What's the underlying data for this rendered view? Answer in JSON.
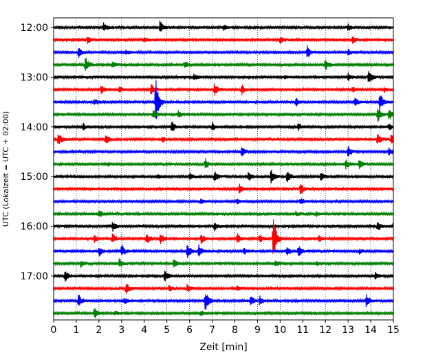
{
  "chart_data": {
    "type": "line",
    "title": "",
    "xlabel": "Zeit  [min]",
    "ylabel": "UTC (Lokalzeit = UTC + 02:00)",
    "xlim": [
      0,
      15
    ],
    "x_ticks": [
      "0",
      "1",
      "2",
      "3",
      "4",
      "5",
      "6",
      "7",
      "8",
      "9",
      "10",
      "11",
      "12",
      "13",
      "14",
      "15"
    ],
    "y_ticks": [
      {
        "label": "12:00",
        "row": 0
      },
      {
        "label": "13:00",
        "row": 4
      },
      {
        "label": "14:00",
        "row": 8
      },
      {
        "label": "15:00",
        "row": 12
      },
      {
        "label": "16:00",
        "row": 16
      },
      {
        "label": "17:00",
        "row": 20
      }
    ],
    "grid": {
      "vertical": true,
      "horizontal": false,
      "style": "dotted"
    },
    "row_interval_minutes": 15,
    "row_colors": [
      "#000000",
      "#ff0000",
      "#0000ff",
      "#008000"
    ],
    "rows": [
      {
        "start": "12:00",
        "events": [
          {
            "t": 2.2,
            "a": 0.5
          },
          {
            "t": 4.7,
            "a": 0.8
          },
          {
            "t": 7.5,
            "a": 0.4
          },
          {
            "t": 13.0,
            "a": 0.4
          }
        ]
      },
      {
        "start": "12:15",
        "events": [
          {
            "t": 1.5,
            "a": 0.5
          },
          {
            "t": 4.0,
            "a": 0.3
          },
          {
            "t": 10.0,
            "a": 0.4
          },
          {
            "t": 13.2,
            "a": 0.5
          }
        ]
      },
      {
        "start": "12:30",
        "events": [
          {
            "t": 1.1,
            "a": 0.6
          },
          {
            "t": 3.2,
            "a": 0.3
          },
          {
            "t": 11.2,
            "a": 0.8
          },
          {
            "t": 13.0,
            "a": 0.4
          }
        ]
      },
      {
        "start": "12:45",
        "events": [
          {
            "t": 1.4,
            "a": 1.0
          },
          {
            "t": 2.6,
            "a": 0.4
          },
          {
            "t": 5.8,
            "a": 0.4
          },
          {
            "t": 12.0,
            "a": 0.7
          }
        ]
      },
      {
        "start": "13:00",
        "events": [
          {
            "t": 6.2,
            "a": 0.4
          },
          {
            "t": 10.2,
            "a": 0.3
          },
          {
            "t": 13.0,
            "a": 0.5
          },
          {
            "t": 13.9,
            "a": 1.0
          }
        ]
      },
      {
        "start": "13:15",
        "events": [
          {
            "t": 2.1,
            "a": 0.5
          },
          {
            "t": 2.9,
            "a": 0.4
          },
          {
            "t": 4.3,
            "a": 0.7
          },
          {
            "t": 7.1,
            "a": 0.8
          },
          {
            "t": 8.3,
            "a": 0.6
          },
          {
            "t": 13.2,
            "a": 0.3
          },
          {
            "t": 14.6,
            "a": 0.3
          }
        ]
      },
      {
        "start": "13:30",
        "events": [
          {
            "t": 1.8,
            "a": 0.4
          },
          {
            "t": 4.5,
            "a": 3.0
          },
          {
            "t": 10.7,
            "a": 0.5
          },
          {
            "t": 13.3,
            "a": 0.5
          },
          {
            "t": 14.4,
            "a": 1.2
          }
        ]
      },
      {
        "start": "13:45",
        "events": [
          {
            "t": 4.4,
            "a": 0.6
          },
          {
            "t": 5.5,
            "a": 0.4
          },
          {
            "t": 14.3,
            "a": 1.0
          },
          {
            "t": 14.8,
            "a": 0.8
          }
        ]
      },
      {
        "start": "14:00",
        "events": [
          {
            "t": 1.3,
            "a": 0.4
          },
          {
            "t": 5.2,
            "a": 0.8
          },
          {
            "t": 7.0,
            "a": 0.5
          },
          {
            "t": 10.8,
            "a": 0.4
          },
          {
            "t": 14.8,
            "a": 0.5
          }
        ]
      },
      {
        "start": "14:15",
        "events": [
          {
            "t": 0.2,
            "a": 1.0
          },
          {
            "t": 2.3,
            "a": 0.7
          },
          {
            "t": 4.8,
            "a": 0.3
          },
          {
            "t": 14.3,
            "a": 0.7
          },
          {
            "t": 14.9,
            "a": 0.6
          }
        ]
      },
      {
        "start": "14:30",
        "events": [
          {
            "t": 8.3,
            "a": 0.6
          },
          {
            "t": 13.0,
            "a": 0.7
          },
          {
            "t": 14.8,
            "a": 0.5
          }
        ]
      },
      {
        "start": "14:45",
        "events": [
          {
            "t": 2.4,
            "a": 0.3
          },
          {
            "t": 6.7,
            "a": 0.7
          },
          {
            "t": 12.9,
            "a": 0.6
          },
          {
            "t": 13.5,
            "a": 0.6
          }
        ]
      },
      {
        "start": "15:00",
        "events": [
          {
            "t": 4.6,
            "a": 0.3
          },
          {
            "t": 6.0,
            "a": 0.4
          },
          {
            "t": 7.1,
            "a": 0.7
          },
          {
            "t": 8.6,
            "a": 0.6
          },
          {
            "t": 9.6,
            "a": 0.9
          },
          {
            "t": 10.3,
            "a": 0.8
          },
          {
            "t": 11.8,
            "a": 0.5
          }
        ]
      },
      {
        "start": "15:15",
        "events": [
          {
            "t": 8.2,
            "a": 0.6
          },
          {
            "t": 10.9,
            "a": 0.7
          }
        ]
      },
      {
        "start": "15:30",
        "events": [
          {
            "t": 6.5,
            "a": 0.3
          },
          {
            "t": 8.1,
            "a": 0.3
          },
          {
            "t": 10.9,
            "a": 0.4
          }
        ]
      },
      {
        "start": "15:45",
        "events": [
          {
            "t": 2.0,
            "a": 0.5
          },
          {
            "t": 10.7,
            "a": 0.3
          },
          {
            "t": 11.6,
            "a": 0.3
          }
        ]
      },
      {
        "start": "16:00",
        "events": [
          {
            "t": 2.6,
            "a": 0.6
          },
          {
            "t": 7.1,
            "a": 0.6
          },
          {
            "t": 14.3,
            "a": 0.6
          },
          {
            "t": 15.0,
            "a": 0.4
          }
        ]
      },
      {
        "start": "16:15",
        "events": [
          {
            "t": 1.8,
            "a": 0.4
          },
          {
            "t": 2.6,
            "a": 0.6
          },
          {
            "t": 4.1,
            "a": 0.7
          },
          {
            "t": 4.7,
            "a": 0.7
          },
          {
            "t": 6.5,
            "a": 0.6
          },
          {
            "t": 8.1,
            "a": 0.7
          },
          {
            "t": 9.1,
            "a": 0.6
          },
          {
            "t": 9.7,
            "a": 2.8
          },
          {
            "t": 11.7,
            "a": 0.4
          }
        ]
      },
      {
        "start": "16:30",
        "events": [
          {
            "t": 2.0,
            "a": 0.6
          },
          {
            "t": 3.0,
            "a": 0.8
          },
          {
            "t": 5.9,
            "a": 1.0
          },
          {
            "t": 6.4,
            "a": 0.9
          },
          {
            "t": 8.4,
            "a": 0.4
          },
          {
            "t": 10.3,
            "a": 0.6
          },
          {
            "t": 10.8,
            "a": 0.8
          },
          {
            "t": 13.5,
            "a": 0.3
          }
        ]
      },
      {
        "start": "16:45",
        "events": [
          {
            "t": 1.2,
            "a": 0.4
          },
          {
            "t": 2.9,
            "a": 0.6
          },
          {
            "t": 5.3,
            "a": 0.5
          },
          {
            "t": 9.8,
            "a": 0.4
          },
          {
            "t": 11.6,
            "a": 0.3
          }
        ]
      },
      {
        "start": "17:00",
        "events": [
          {
            "t": 0.5,
            "a": 0.8
          },
          {
            "t": 4.9,
            "a": 0.7
          },
          {
            "t": 14.2,
            "a": 0.4
          }
        ]
      },
      {
        "start": "17:15",
        "events": [
          {
            "t": 3.2,
            "a": 0.7
          },
          {
            "t": 5.1,
            "a": 0.4
          },
          {
            "t": 5.9,
            "a": 0.5
          },
          {
            "t": 8.1,
            "a": 0.3
          }
        ]
      },
      {
        "start": "17:30",
        "events": [
          {
            "t": 1.1,
            "a": 0.8
          },
          {
            "t": 3.1,
            "a": 0.4
          },
          {
            "t": 6.7,
            "a": 1.3
          },
          {
            "t": 8.7,
            "a": 0.7
          },
          {
            "t": 9.1,
            "a": 0.5
          },
          {
            "t": 13.8,
            "a": 0.8
          }
        ]
      },
      {
        "start": "17:45",
        "events": [
          {
            "t": 1.8,
            "a": 0.7
          },
          {
            "t": 2.7,
            "a": 0.3
          },
          {
            "t": 6.5,
            "a": 0.3
          }
        ]
      }
    ]
  }
}
